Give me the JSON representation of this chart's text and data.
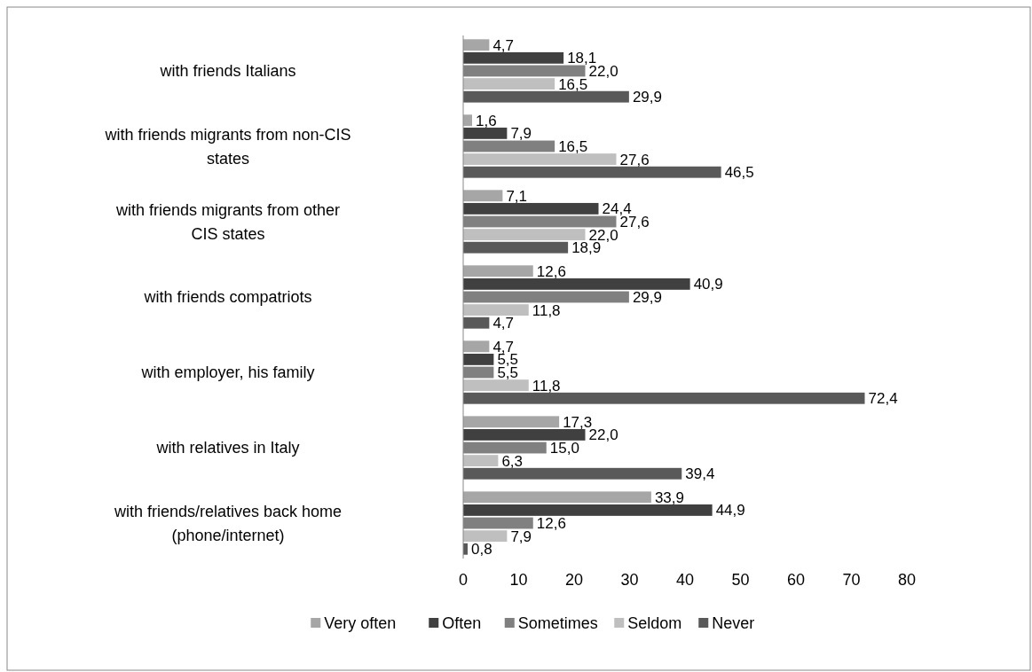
{
  "chart_data": {
    "type": "bar",
    "orientation": "horizontal",
    "categories": [
      "with friends Italians",
      "with friends migrants from non-CIS states",
      "with friends migrants from other CIS states",
      "with friends compatriots",
      "with employer, his family",
      "with relatives in Italy",
      "with friends/relatives back home (phone/internet)"
    ],
    "series": [
      {
        "name": "Very often",
        "color": "#a6a6a6",
        "values": [
          4.7,
          1.6,
          7.1,
          12.6,
          4.7,
          17.3,
          33.9
        ],
        "value_labels": [
          "4,7",
          "1,6",
          "7,1",
          "12,6",
          "4,7",
          "17,3",
          "33,9"
        ]
      },
      {
        "name": "Often",
        "color": "#404040",
        "values": [
          18.1,
          7.9,
          24.4,
          40.9,
          5.5,
          22.0,
          44.9
        ],
        "value_labels": [
          "18,1",
          "7,9",
          "24,4",
          "40,9",
          "5,5",
          "22,0",
          "44,9"
        ]
      },
      {
        "name": "Sometimes",
        "color": "#808080",
        "values": [
          22.0,
          16.5,
          27.6,
          29.9,
          5.5,
          15.0,
          12.6
        ],
        "value_labels": [
          "22,0",
          "16,5",
          "27,6",
          "29,9",
          "5,5",
          "15,0",
          "12,6"
        ]
      },
      {
        "name": "Seldom",
        "color": "#bfbfbf",
        "values": [
          16.5,
          27.6,
          22.0,
          11.8,
          11.8,
          6.3,
          7.9
        ],
        "value_labels": [
          "16,5",
          "27,6",
          "22,0",
          "11,8",
          "11,8",
          "6,3",
          "7,9"
        ]
      },
      {
        "name": "Never",
        "color": "#595959",
        "values": [
          29.9,
          46.5,
          18.9,
          4.7,
          72.4,
          39.4,
          0.8
        ],
        "value_labels": [
          "29,9",
          "46,5",
          "18,9",
          "4,7",
          "72,4",
          "39,4",
          "0,8"
        ]
      }
    ],
    "xlim": [
      0,
      80
    ],
    "xticks": [
      0,
      10,
      20,
      30,
      40,
      50,
      60,
      70,
      80
    ],
    "grid": false,
    "legend": "bottom"
  }
}
